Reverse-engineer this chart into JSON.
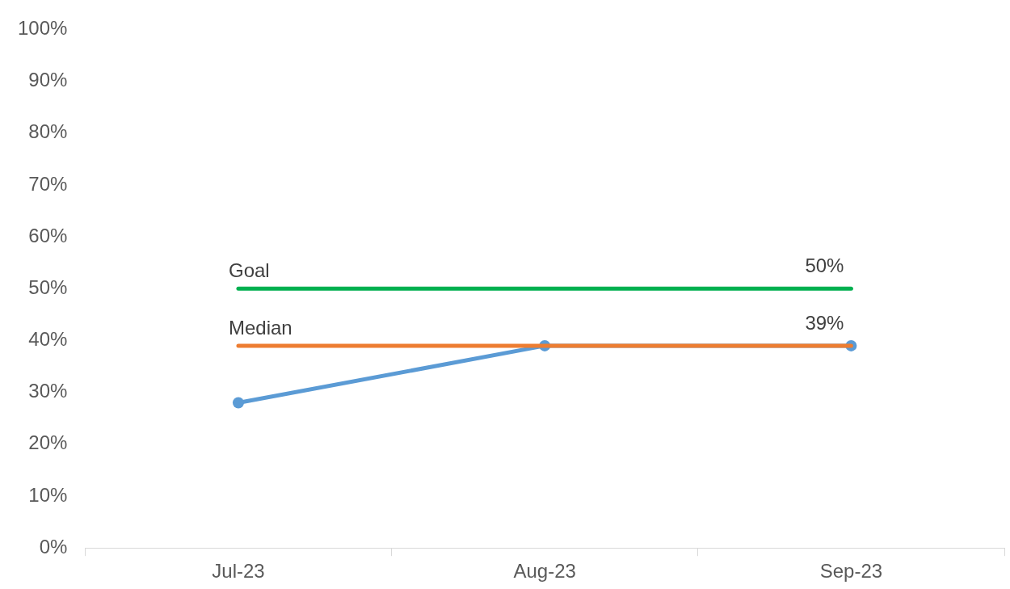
{
  "chart_data": {
    "type": "line",
    "categories": [
      "Jul-23",
      "Aug-23",
      "Sep-23"
    ],
    "series": [
      {
        "name": "Goal",
        "color": "#00b050",
        "values": [
          50,
          50,
          50
        ],
        "marker": "none",
        "value_labels": [
          null,
          null,
          "50%"
        ]
      },
      {
        "name": "Median",
        "color": "#ed7d31",
        "values": [
          39,
          39,
          39
        ],
        "marker": "none"
      },
      {
        "color": "#5b9bd5",
        "values": [
          28,
          39,
          39
        ],
        "marker": "circle",
        "value_labels": [
          null,
          null,
          "39%"
        ]
      }
    ],
    "ylim": [
      0,
      100
    ],
    "yticks": [
      {
        "value": 0,
        "label": "0%"
      },
      {
        "value": 10,
        "label": "10%"
      },
      {
        "value": 20,
        "label": "20%"
      },
      {
        "value": 30,
        "label": "30%"
      },
      {
        "value": 40,
        "label": "40%"
      },
      {
        "value": 50,
        "label": "50%"
      },
      {
        "value": 60,
        "label": "60%"
      },
      {
        "value": 70,
        "label": "70%"
      },
      {
        "value": 80,
        "label": "80%"
      },
      {
        "value": 90,
        "label": "90%"
      },
      {
        "value": 100,
        "label": "100%"
      }
    ],
    "grid": false,
    "legend": false
  }
}
